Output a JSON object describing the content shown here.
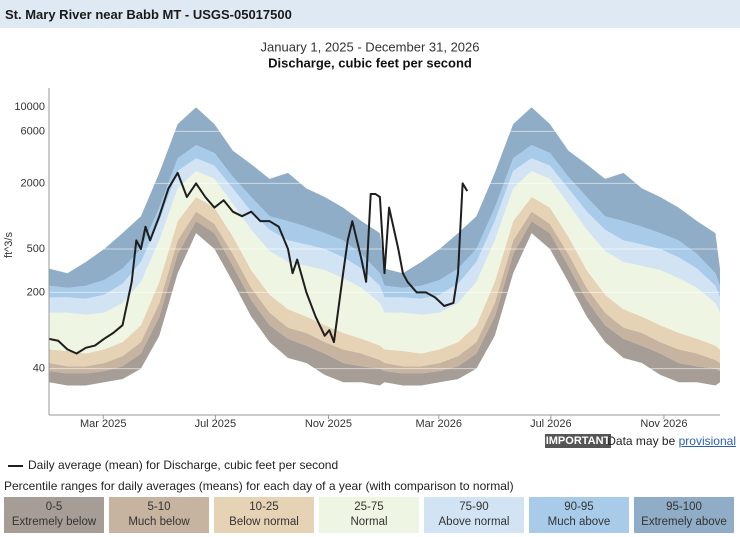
{
  "header": {
    "title": "St. Mary River near Babb MT - USGS-05017500"
  },
  "chart_data": {
    "type": "percentile-band",
    "title": "January 1, 2025 - December 31, 2026",
    "subtitle": "Discharge, cubic feet per second",
    "ylabel": "ft^3/s",
    "ylog": true,
    "grid": true,
    "ylim": [
      15,
      15000
    ],
    "yticks": [
      40,
      200,
      500,
      2000,
      6000,
      10000
    ],
    "xlim": [
      0,
      730
    ],
    "xticks": [
      {
        "value": 59,
        "label": "Mar 2025"
      },
      {
        "value": 181,
        "label": "Jul 2025"
      },
      {
        "value": 304,
        "label": "Nov 2025"
      },
      {
        "value": 424,
        "label": "Mar 2026"
      },
      {
        "value": 546,
        "label": "Jul 2026"
      },
      {
        "value": 669,
        "label": "Nov 2026"
      }
    ],
    "bands": {
      "title": "Percentile ranges for daily averages (means) for each day of a year (with comparison to normal)",
      "x": [
        0,
        20,
        40,
        60,
        80,
        100,
        120,
        140,
        160,
        180,
        200,
        220,
        240,
        260,
        280,
        300,
        320,
        340,
        360,
        365,
        385,
        405,
        425,
        445,
        465,
        485,
        505,
        525,
        545,
        565,
        585,
        605,
        625,
        645,
        665,
        685,
        705,
        725,
        730
      ],
      "limits": [
        [
          30,
          28,
          28,
          30,
          32,
          40,
          80,
          300,
          700,
          500,
          250,
          120,
          70,
          50,
          45,
          35,
          30,
          30,
          28,
          30,
          28,
          28,
          30,
          32,
          40,
          80,
          300,
          700,
          500,
          250,
          120,
          70,
          50,
          45,
          35,
          30,
          30,
          28,
          30
        ],
        [
          38,
          36,
          36,
          38,
          42,
          55,
          120,
          450,
          900,
          700,
          350,
          170,
          100,
          75,
          65,
          55,
          45,
          42,
          40,
          38,
          36,
          36,
          38,
          42,
          55,
          120,
          450,
          900,
          700,
          350,
          170,
          100,
          75,
          65,
          55,
          45,
          42,
          40,
          38
        ],
        [
          45,
          42,
          42,
          45,
          52,
          70,
          160,
          600,
          1100,
          850,
          450,
          220,
          130,
          95,
          85,
          70,
          60,
          55,
          48,
          45,
          42,
          42,
          45,
          52,
          70,
          160,
          600,
          1100,
          850,
          450,
          220,
          130,
          95,
          85,
          70,
          60,
          55,
          48,
          45
        ],
        [
          60,
          58,
          55,
          60,
          70,
          100,
          250,
          900,
          1500,
          1200,
          650,
          320,
          190,
          140,
          120,
          100,
          85,
          75,
          65,
          60,
          58,
          55,
          60,
          70,
          100,
          250,
          900,
          1500,
          1200,
          650,
          320,
          190,
          140,
          120,
          100,
          85,
          75,
          65,
          60
        ],
        [
          130,
          130,
          125,
          130,
          160,
          250,
          600,
          1800,
          2600,
          2200,
          1300,
          750,
          480,
          380,
          350,
          320,
          270,
          220,
          160,
          130,
          130,
          125,
          130,
          160,
          250,
          600,
          1800,
          2600,
          2200,
          1300,
          750,
          480,
          380,
          350,
          320,
          270,
          220,
          160,
          130
        ],
        [
          180,
          180,
          175,
          190,
          240,
          380,
          900,
          2600,
          3400,
          2900,
          1800,
          1100,
          750,
          600,
          550,
          500,
          420,
          330,
          230,
          180,
          180,
          175,
          190,
          240,
          380,
          900,
          2600,
          3400,
          2900,
          1800,
          1100,
          750,
          600,
          550,
          500,
          420,
          330,
          230,
          180
        ],
        [
          230,
          220,
          230,
          260,
          330,
          500,
          1200,
          3400,
          4500,
          3800,
          2300,
          1500,
          1000,
          900,
          800,
          700,
          600,
          450,
          300,
          230,
          220,
          230,
          260,
          330,
          500,
          1200,
          3400,
          4500,
          3800,
          2300,
          1500,
          1000,
          900,
          800,
          700,
          600,
          450,
          300,
          230
        ],
        [
          330,
          300,
          380,
          500,
          700,
          1000,
          2500,
          7000,
          10000,
          7000,
          4000,
          3000,
          2200,
          2500,
          1800,
          1500,
          1200,
          900,
          700,
          330,
          300,
          380,
          500,
          700,
          1000,
          2500,
          7000,
          10000,
          7000,
          4000,
          3000,
          2200,
          2500,
          1800,
          1500,
          1200,
          900,
          700,
          330
        ]
      ],
      "ranges": [
        {
          "range": "0-5",
          "label": "Extremely below",
          "color": "#a69e96"
        },
        {
          "range": "5-10",
          "label": "Much below",
          "color": "#c6b3a0"
        },
        {
          "range": "10-25",
          "label": "Below normal",
          "color": "#e6d2b5"
        },
        {
          "range": "25-75",
          "label": "Normal",
          "color": "#eef5e2"
        },
        {
          "range": "75-90",
          "label": "Above normal",
          "color": "#d2e4f4"
        },
        {
          "range": "90-95",
          "label": "Much above",
          "color": "#a9cbea"
        },
        {
          "range": "95-100",
          "label": "Extremely above",
          "color": "#8fadc6"
        }
      ]
    },
    "series": [
      {
        "name": "Daily average (mean) for Discharge, cubic feet per second",
        "color": "#1e1e1e",
        "x": [
          0,
          10,
          20,
          30,
          40,
          50,
          60,
          70,
          80,
          90,
          95,
          100,
          105,
          110,
          120,
          130,
          140,
          150,
          160,
          170,
          180,
          190,
          200,
          210,
          220,
          230,
          240,
          250,
          260,
          265,
          270,
          280,
          290,
          300,
          305,
          310,
          320,
          325,
          330,
          340,
          345,
          350,
          355,
          360,
          365,
          370,
          380,
          385,
          390,
          400,
          410,
          420,
          430,
          440,
          445,
          450,
          455
        ],
        "values": [
          75,
          72,
          60,
          55,
          62,
          65,
          75,
          85,
          100,
          250,
          600,
          500,
          800,
          600,
          1000,
          1800,
          2500,
          1500,
          2000,
          1500,
          1200,
          1400,
          1100,
          1000,
          1100,
          900,
          900,
          800,
          500,
          300,
          400,
          200,
          120,
          80,
          90,
          70,
          300,
          600,
          900,
          400,
          250,
          1600,
          1600,
          1500,
          300,
          1200,
          500,
          300,
          250,
          200,
          200,
          180,
          150,
          160,
          300,
          2000,
          1700
        ]
      }
    ]
  },
  "footer": {
    "badge": "IMPORTANT",
    "text": "Data may be",
    "link": "provisional"
  }
}
